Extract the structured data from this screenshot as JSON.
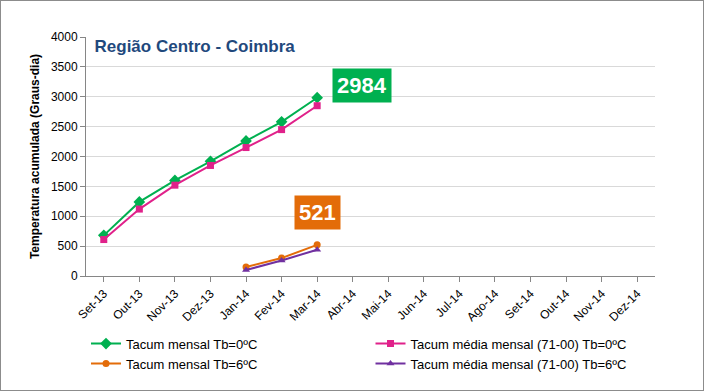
{
  "chart_data": {
    "type": "line",
    "title": "Região Centro - Coimbra",
    "y_label": "Temperatura acumulada (Graus-dia)",
    "categories": [
      "Set-13",
      "Out-13",
      "Nov-13",
      "Dez-13",
      "Jan-14",
      "Fev-14",
      "Mar-14",
      "Abr-14",
      "Mai-14",
      "Jun-14",
      "Jul-14",
      "Ago-14",
      "Set-14",
      "Out-14",
      "Nov-14",
      "Dez-14"
    ],
    "series": [
      {
        "name": "Tacum mensal Tb=0ºC",
        "color": "#00b050",
        "marker": "diamond",
        "values": [
          680,
          1240,
          1600,
          1920,
          2260,
          2580,
          2984,
          null,
          null,
          null,
          null,
          null,
          null,
          null,
          null,
          null
        ]
      },
      {
        "name": "Tacum média mensal (71-00) Tb=0ºC",
        "color": "#e0218a",
        "marker": "square",
        "values": [
          610,
          1120,
          1520,
          1850,
          2150,
          2450,
          2850,
          null,
          null,
          null,
          null,
          null,
          null,
          null,
          null,
          null
        ]
      },
      {
        "name": "Tacum mensal Tb=6ºC",
        "color": "#e36c09",
        "marker": "circle",
        "values": [
          null,
          null,
          null,
          null,
          150,
          300,
          521,
          null,
          null,
          null,
          null,
          null,
          null,
          null,
          null,
          null
        ]
      },
      {
        "name": "Tacum média mensal (71-00) Tb=6ºC",
        "color": "#7030a0",
        "marker": "triangle",
        "values": [
          null,
          null,
          null,
          null,
          100,
          260,
          440,
          null,
          null,
          null,
          null,
          null,
          null,
          null,
          null,
          null
        ]
      }
    ],
    "annotations": [
      {
        "text": "2984",
        "x": "Mar-14",
        "y": 2984,
        "color": "#00b050"
      },
      {
        "text": "521",
        "x": "Mar-14",
        "y": 521,
        "color": "#e36c09"
      }
    ],
    "ylim": [
      0,
      4000
    ],
    "yticks": [
      0,
      500,
      1000,
      1500,
      2000,
      2500,
      3000,
      3500,
      4000
    ],
    "grid": true,
    "legend": "bottom"
  }
}
